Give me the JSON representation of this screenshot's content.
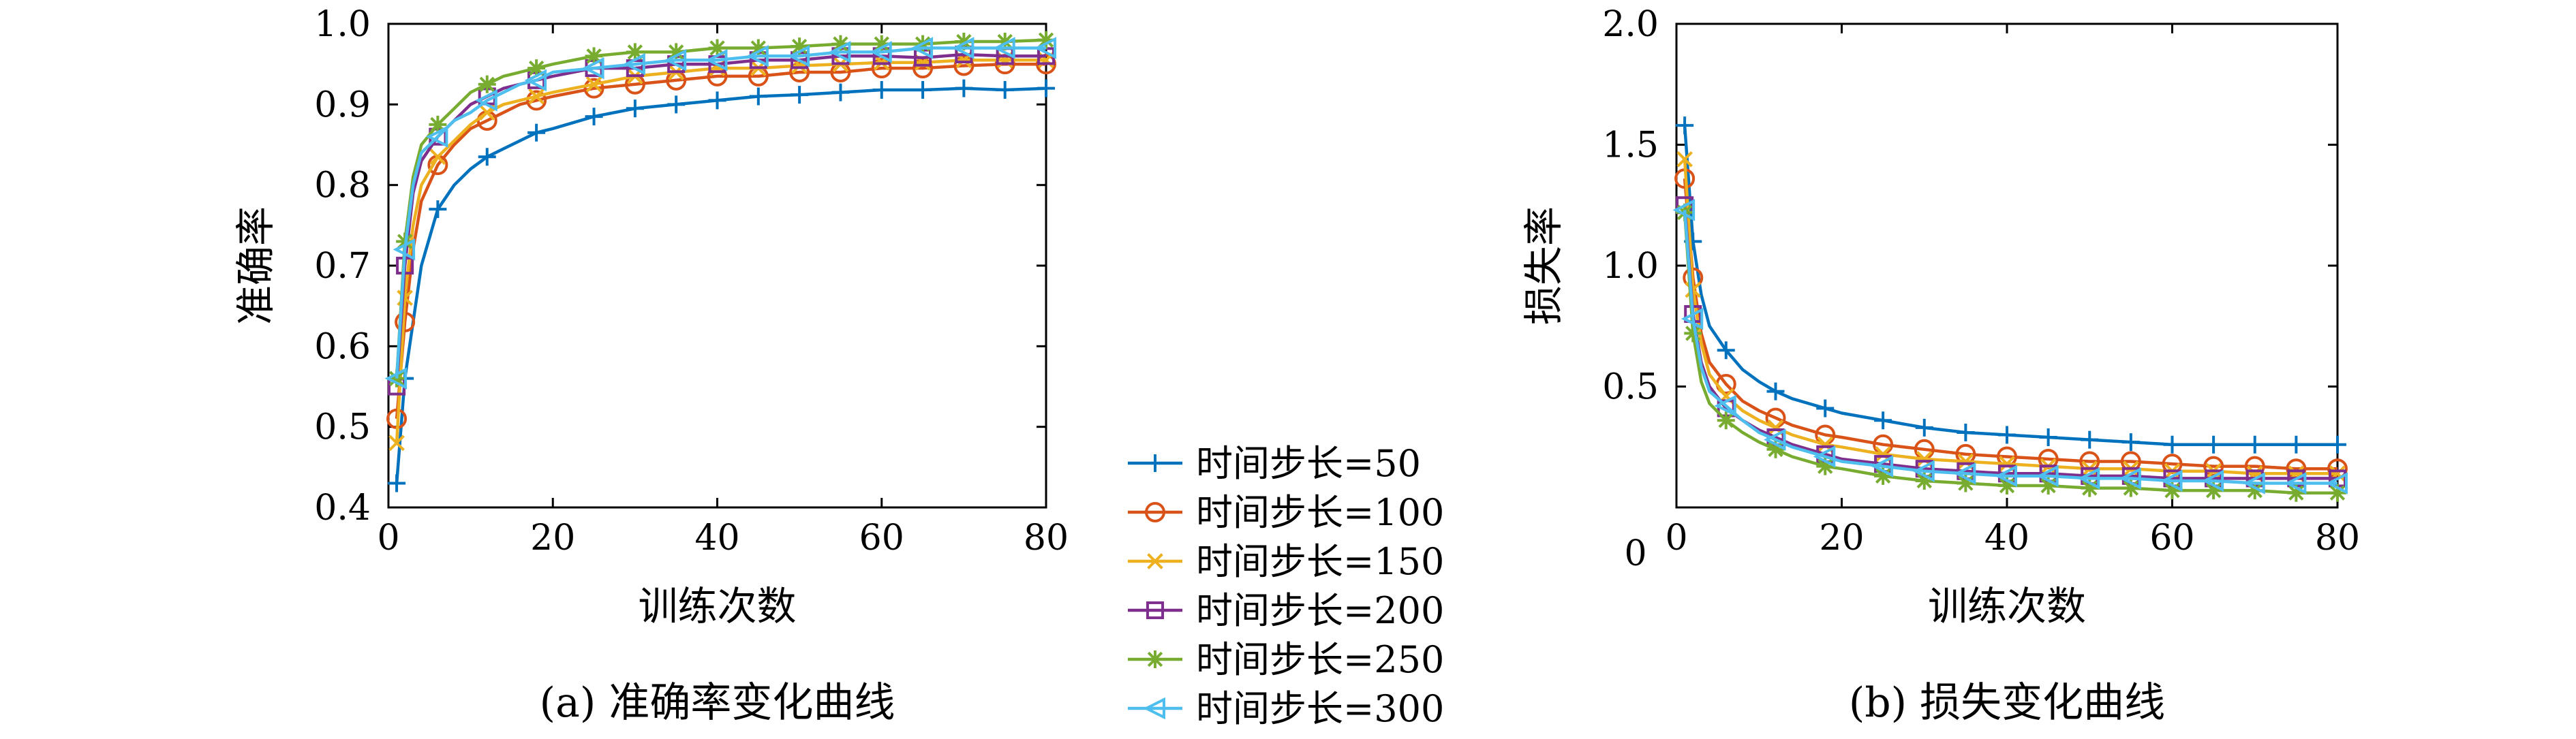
{
  "chart_data": [
    {
      "type": "line",
      "caption": "(a) 准确率变化曲线",
      "xlabel": "训练次数",
      "ylabel": "准确率",
      "xlim": [
        0,
        80
      ],
      "ylim": [
        0.4,
        1.0
      ],
      "xticks": [
        "0",
        "20",
        "40",
        "60",
        "80"
      ],
      "yticks": [
        "0.4",
        "0.5",
        "0.6",
        "0.7",
        "0.8",
        "0.9",
        "1.0"
      ],
      "grid": false,
      "x": [
        1,
        2,
        3,
        4,
        6,
        8,
        10,
        12,
        14,
        16,
        18,
        20,
        25,
        30,
        35,
        40,
        45,
        50,
        55,
        60,
        65,
        70,
        75,
        80
      ],
      "series": [
        {
          "name": "时间步长=50",
          "values": [
            0.43,
            0.56,
            0.63,
            0.7,
            0.77,
            0.8,
            0.82,
            0.835,
            0.845,
            0.855,
            0.865,
            0.87,
            0.885,
            0.895,
            0.9,
            0.905,
            0.91,
            0.912,
            0.915,
            0.918,
            0.918,
            0.92,
            0.918,
            0.92
          ]
        },
        {
          "name": "时间步长=100",
          "values": [
            0.51,
            0.63,
            0.72,
            0.78,
            0.825,
            0.85,
            0.87,
            0.88,
            0.89,
            0.9,
            0.905,
            0.91,
            0.92,
            0.925,
            0.93,
            0.935,
            0.935,
            0.94,
            0.94,
            0.945,
            0.945,
            0.948,
            0.95,
            0.95
          ]
        },
        {
          "name": "时间步长=150",
          "values": [
            0.48,
            0.66,
            0.75,
            0.8,
            0.835,
            0.855,
            0.875,
            0.89,
            0.9,
            0.905,
            0.91,
            0.915,
            0.925,
            0.935,
            0.94,
            0.945,
            0.945,
            0.948,
            0.95,
            0.952,
            0.952,
            0.955,
            0.955,
            0.955
          ]
        },
        {
          "name": "时间步长=200",
          "values": [
            0.55,
            0.7,
            0.79,
            0.83,
            0.86,
            0.88,
            0.9,
            0.91,
            0.92,
            0.925,
            0.93,
            0.935,
            0.945,
            0.945,
            0.95,
            0.95,
            0.955,
            0.955,
            0.96,
            0.96,
            0.958,
            0.962,
            0.96,
            0.96
          ]
        },
        {
          "name": "时间步长=250",
          "values": [
            0.56,
            0.73,
            0.81,
            0.85,
            0.875,
            0.895,
            0.915,
            0.925,
            0.935,
            0.94,
            0.945,
            0.95,
            0.96,
            0.965,
            0.965,
            0.97,
            0.97,
            0.972,
            0.975,
            0.975,
            0.975,
            0.978,
            0.978,
            0.98
          ]
        },
        {
          "name": "时间步长=300",
          "values": [
            0.56,
            0.72,
            0.8,
            0.84,
            0.86,
            0.88,
            0.89,
            0.905,
            0.915,
            0.925,
            0.93,
            0.94,
            0.945,
            0.95,
            0.955,
            0.955,
            0.96,
            0.96,
            0.965,
            0.965,
            0.97,
            0.97,
            0.97,
            0.97
          ]
        }
      ]
    },
    {
      "type": "line",
      "caption": "(b) 损失变化曲线",
      "xlabel": "训练次数",
      "ylabel": "损失率",
      "xlim": [
        0,
        80
      ],
      "ylim": [
        0.0,
        2.0
      ],
      "xticks": [
        "0",
        "20",
        "40",
        "60",
        "80"
      ],
      "yticks": [
        "0.5",
        "1.0",
        "1.5",
        "2.0"
      ],
      "grid": false,
      "x": [
        1,
        2,
        3,
        4,
        6,
        8,
        10,
        12,
        14,
        16,
        18,
        20,
        25,
        30,
        35,
        40,
        45,
        50,
        55,
        60,
        65,
        70,
        75,
        80
      ],
      "series": [
        {
          "name": "时间步长=50",
          "values": [
            1.58,
            1.1,
            0.88,
            0.75,
            0.65,
            0.57,
            0.52,
            0.48,
            0.45,
            0.43,
            0.41,
            0.39,
            0.36,
            0.33,
            0.31,
            0.3,
            0.29,
            0.28,
            0.27,
            0.26,
            0.26,
            0.26,
            0.26,
            0.26
          ]
        },
        {
          "name": "时间步长=100",
          "values": [
            1.36,
            0.95,
            0.72,
            0.6,
            0.51,
            0.44,
            0.4,
            0.37,
            0.34,
            0.32,
            0.3,
            0.29,
            0.26,
            0.24,
            0.22,
            0.21,
            0.2,
            0.19,
            0.19,
            0.18,
            0.17,
            0.17,
            0.16,
            0.16
          ]
        },
        {
          "name": "时间步长=150",
          "values": [
            1.44,
            0.9,
            0.68,
            0.55,
            0.46,
            0.4,
            0.36,
            0.33,
            0.3,
            0.28,
            0.26,
            0.25,
            0.22,
            0.2,
            0.19,
            0.18,
            0.17,
            0.16,
            0.16,
            0.15,
            0.15,
            0.14,
            0.14,
            0.14
          ]
        },
        {
          "name": "时间步长=200",
          "values": [
            1.25,
            0.8,
            0.6,
            0.5,
            0.41,
            0.36,
            0.32,
            0.29,
            0.26,
            0.24,
            0.22,
            0.2,
            0.18,
            0.16,
            0.15,
            0.14,
            0.14,
            0.13,
            0.13,
            0.12,
            0.12,
            0.12,
            0.12,
            0.12
          ]
        },
        {
          "name": "时间步长=250",
          "values": [
            1.22,
            0.72,
            0.52,
            0.43,
            0.36,
            0.31,
            0.27,
            0.24,
            0.21,
            0.19,
            0.17,
            0.16,
            0.13,
            0.11,
            0.1,
            0.09,
            0.09,
            0.08,
            0.08,
            0.07,
            0.07,
            0.07,
            0.06,
            0.06
          ]
        },
        {
          "name": "时间步长=300",
          "values": [
            1.23,
            0.78,
            0.58,
            0.48,
            0.42,
            0.36,
            0.31,
            0.28,
            0.25,
            0.23,
            0.21,
            0.19,
            0.17,
            0.15,
            0.14,
            0.13,
            0.13,
            0.12,
            0.12,
            0.11,
            0.11,
            0.1,
            0.1,
            0.1
          ]
        }
      ]
    }
  ],
  "style": {
    "colors": [
      "#0072bd",
      "#d95319",
      "#edb120",
      "#7e2f8e",
      "#77ac30",
      "#4dbeee"
    ],
    "markers": [
      "plus",
      "circle",
      "x",
      "square",
      "asterisk",
      "triangle-left"
    ]
  }
}
